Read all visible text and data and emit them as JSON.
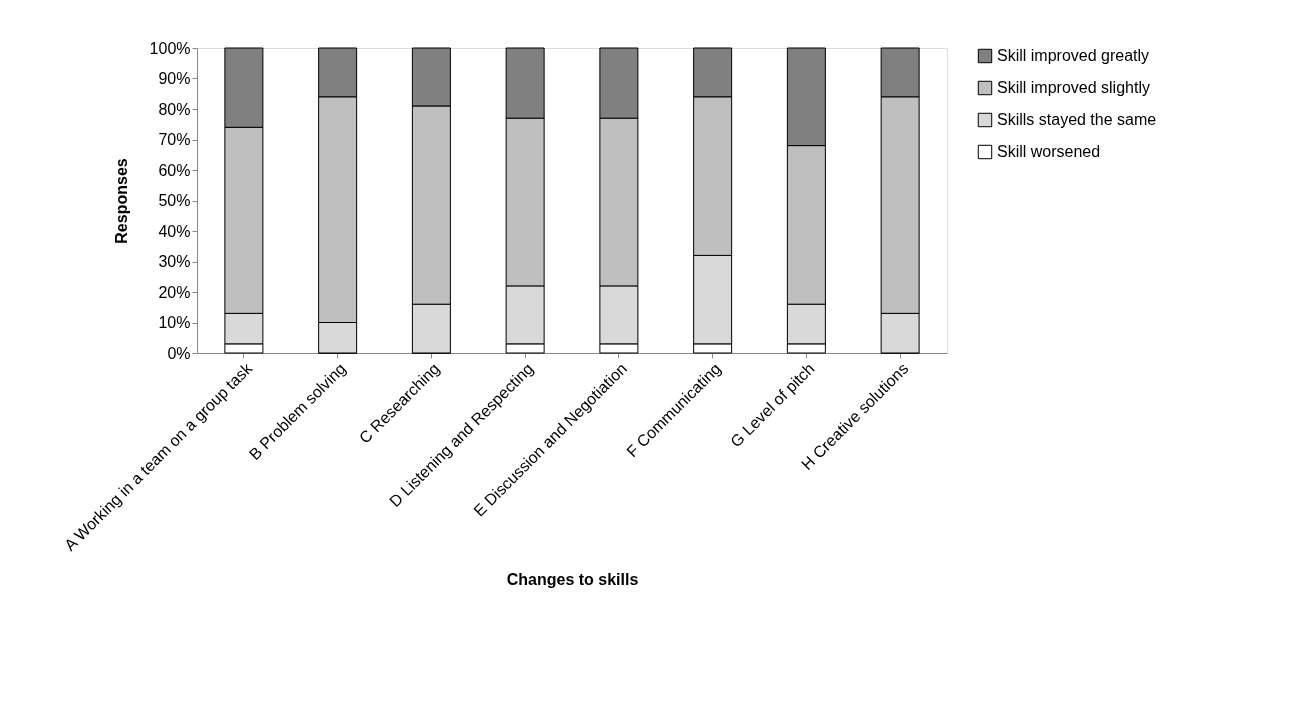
{
  "chart_data": {
    "type": "bar",
    "stacked": true,
    "xlabel": "Changes to skills",
    "ylabel": "Responses",
    "categories": [
      "A Working in a team on a group task",
      "B Problem solving",
      "C Researching",
      "D Listening and Respecting",
      "E Discussion and Negotiation",
      "F Communicating",
      "G Level of pitch",
      "H Creative solutions"
    ],
    "series": [
      {
        "name": "Skill worsened",
        "color": "#ffffff",
        "values": [
          3,
          0,
          0,
          3,
          3,
          3,
          3,
          0
        ]
      },
      {
        "name": "Skills stayed the same",
        "color": "#d9d9d9",
        "values": [
          10,
          10,
          16,
          19,
          19,
          29,
          13,
          13
        ]
      },
      {
        "name": "Skill improved slightly",
        "color": "#bfbfbf",
        "values": [
          61,
          74,
          65,
          55,
          55,
          52,
          52,
          71
        ]
      },
      {
        "name": "Skill improved greatly",
        "color": "#808080",
        "values": [
          26,
          16,
          19,
          23,
          23,
          16,
          32,
          16
        ]
      }
    ],
    "ylim": [
      0,
      100
    ],
    "yticks": [
      {
        "value": 0,
        "label": "0%"
      },
      {
        "value": 10,
        "label": "10%"
      },
      {
        "value": 20,
        "label": "20%"
      },
      {
        "value": 30,
        "label": "30%"
      },
      {
        "value": 40,
        "label": "40%"
      },
      {
        "value": 50,
        "label": "50%"
      },
      {
        "value": 60,
        "label": "60%"
      },
      {
        "value": 70,
        "label": "70%"
      },
      {
        "value": 80,
        "label": "80%"
      },
      {
        "value": 90,
        "label": "90%"
      },
      {
        "value": 100,
        "label": "100%"
      }
    ],
    "grid": false,
    "legend": "right"
  }
}
